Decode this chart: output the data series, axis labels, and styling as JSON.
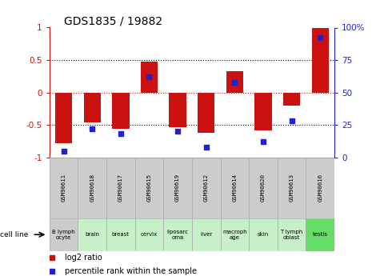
{
  "title": "GDS1835 / 19882",
  "samples": [
    "GSM90611",
    "GSM90618",
    "GSM90617",
    "GSM90615",
    "GSM90619",
    "GSM90612",
    "GSM90614",
    "GSM90620",
    "GSM90613",
    "GSM90616"
  ],
  "cell_lines": [
    "B lymph\nocyte",
    "brain",
    "breast",
    "cervix",
    "liposarc\noma",
    "liver",
    "macroph\nage",
    "skin",
    "T lymph\noblast",
    "testis"
  ],
  "log2_ratio": [
    -0.78,
    -0.46,
    -0.56,
    0.48,
    -0.53,
    -0.62,
    0.33,
    -0.58,
    -0.2,
    0.99
  ],
  "percentile_rank": [
    5,
    22,
    18,
    62,
    20,
    8,
    58,
    12,
    28,
    92
  ],
  "bar_color": "#cc1111",
  "dot_color": "#2222cc",
  "ylim": [
    -1,
    1
  ],
  "y2lim": [
    0,
    100
  ],
  "yticks": [
    -1,
    -0.5,
    0,
    0.5,
    1
  ],
  "y2ticks": [
    0,
    25,
    50,
    75,
    100
  ],
  "ytick_labels": [
    "-1",
    "-0.5",
    "0",
    "0.5",
    "1"
  ],
  "y2tick_labels": [
    "0",
    "25",
    "50",
    "75",
    "100%"
  ],
  "cell_line_colors": [
    "#cccccc",
    "#c8f0c8",
    "#c8f0c8",
    "#c8f0c8",
    "#c8f0c8",
    "#c8f0c8",
    "#c8f0c8",
    "#c8f0c8",
    "#c8f0c8",
    "#66dd66"
  ]
}
